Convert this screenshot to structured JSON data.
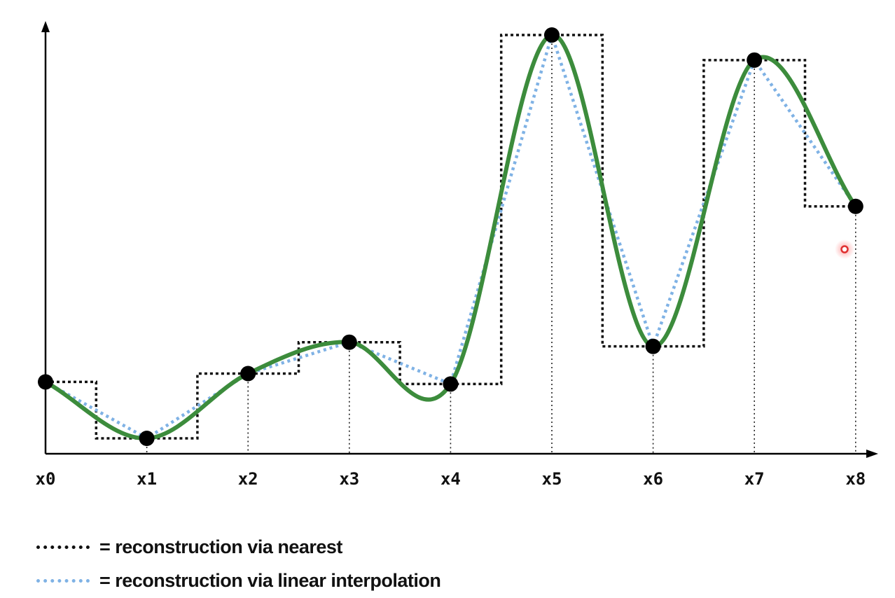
{
  "diagram": {
    "sample_labels": [
      "x0",
      "x1",
      "x2",
      "x3",
      "x4",
      "x5",
      "x6",
      "x7",
      "x8"
    ],
    "sample_values": [
      0.17,
      0.035,
      0.19,
      0.265,
      0.165,
      1.0,
      0.255,
      0.94,
      0.59
    ],
    "colors": {
      "true_signal": "#3c8c3c",
      "nearest": "#111111",
      "linear": "#7fb2e5",
      "samples": "#000000",
      "cursor": "#e03030"
    }
  },
  "legend": {
    "nearest_text": "= reconstruction via nearest",
    "linear_text": "= reconstruction via linear interpolation"
  }
}
